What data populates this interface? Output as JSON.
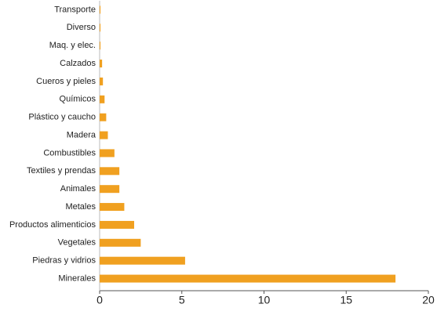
{
  "chart_data": {
    "type": "hbar",
    "categories": [
      "Transporte",
      "Diverso",
      "Maq. y elec.",
      "Calzados",
      "Cueros y pieles",
      "Químicos",
      "Plástico y caucho",
      "Madera",
      "Combustibles",
      "Textiles y prendas",
      "Animales",
      "Metales",
      "Productos alimenticios",
      "Vegetales",
      "Piedras y vidrios",
      "Minerales"
    ],
    "values": [
      0.05,
      0.05,
      0.05,
      0.15,
      0.2,
      0.3,
      0.4,
      0.5,
      0.9,
      1.2,
      1.2,
      1.5,
      2.1,
      2.5,
      5.2,
      18
    ],
    "color": "#f0a020",
    "xlim": [
      0,
      20
    ],
    "xticks": [
      0,
      5,
      10,
      15,
      20
    ]
  }
}
